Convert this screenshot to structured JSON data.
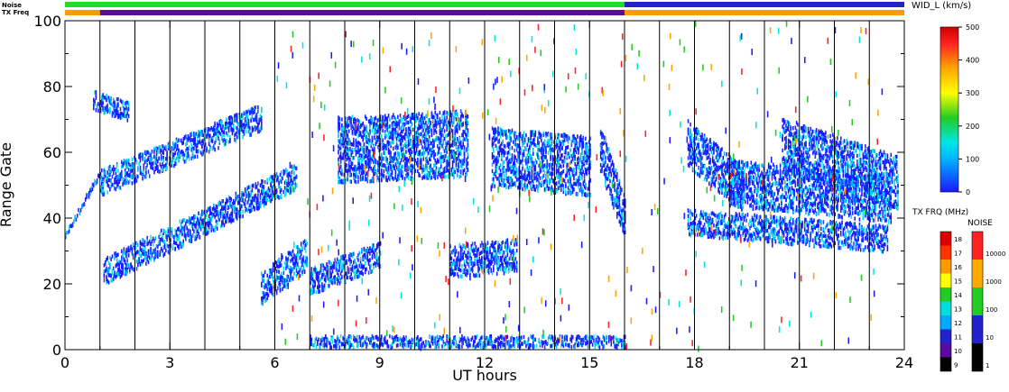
{
  "chart_data": {
    "type": "heatmap",
    "xlabel": "UT hours",
    "ylabel": "Range Gate",
    "xlim": [
      0,
      24
    ],
    "ylim": [
      0,
      100
    ],
    "x_ticks": [
      "0",
      "3",
      "6",
      "9",
      "12",
      "15",
      "18",
      "21",
      "24"
    ],
    "y_ticks": [
      "0",
      "20",
      "40",
      "60",
      "80",
      "100"
    ],
    "hour_gridlines": [
      1,
      2,
      3,
      4,
      5,
      6,
      7,
      8,
      9,
      10,
      11,
      12,
      13,
      14,
      15,
      16,
      17,
      18,
      19,
      20,
      21,
      22,
      23
    ],
    "top_strips": {
      "noise_label": "Noise",
      "txfreq_label": "TX Freq",
      "noise_segments": [
        {
          "x0": 0,
          "x1": 16,
          "color": "#22dd22"
        },
        {
          "x0": 16,
          "x1": 24,
          "color": "#2222cc"
        }
      ],
      "txfreq_segments": [
        {
          "x0": 0,
          "x1": 1,
          "color": "#ff9900"
        },
        {
          "x0": 1,
          "x1": 16,
          "color": "#5a0aa0"
        },
        {
          "x0": 16,
          "x1": 24,
          "color": "#ff9900"
        }
      ]
    },
    "main_colorbar": {
      "title": "WID_L (km/s)",
      "ticks": [
        "0",
        "100",
        "200",
        "300",
        "400",
        "500"
      ],
      "stops": [
        "#1a1aff",
        "#00b4ff",
        "#00e6e6",
        "#22cc22",
        "#ffff00",
        "#ffa500",
        "#ff2222",
        "#cc0000"
      ]
    },
    "freq_colorbar": {
      "title": "TX FRQ (MHz)",
      "ticks": [
        "9",
        "10",
        "11",
        "12",
        "13",
        "14",
        "15",
        "16",
        "17",
        "18"
      ],
      "colors": [
        "#000000",
        "#5a0aa0",
        "#2222cc",
        "#00aaff",
        "#00dddd",
        "#22cc22",
        "#ffff00",
        "#ff9900",
        "#ff3300",
        "#dd0000"
      ]
    },
    "noise_colorbar": {
      "title": "NOISE",
      "ticks": [
        "1",
        "10",
        "100",
        "1000",
        "10000"
      ],
      "colors": [
        "#000000",
        "#2222cc",
        "#22cc22",
        "#ffaa00",
        "#ff2222"
      ]
    },
    "series": [
      {
        "x0": 0.0,
        "x1": 1.0,
        "y": [
          34,
          53
        ],
        "spread": 0
      },
      {
        "x0": 1.0,
        "x1": 5.6,
        "y": [
          50,
          70
        ],
        "spread": 3
      },
      {
        "x0": 1.1,
        "x1": 6.6,
        "y": [
          23,
          52
        ],
        "spread": 3
      },
      {
        "x0": 0.8,
        "x1": 1.8,
        "y": [
          75,
          72
        ],
        "spread": 2
      },
      {
        "x0": 5.6,
        "x1": 6.9,
        "y": [
          18,
          28
        ],
        "spread": 4
      },
      {
        "x0": 7.0,
        "x1": 9.0,
        "y": [
          20,
          28
        ],
        "spread": 3
      },
      {
        "x0": 7.8,
        "x1": 11.5,
        "y": [
          60,
          62
        ],
        "spread": 9
      },
      {
        "x0": 11.0,
        "x1": 12.9,
        "y": [
          26,
          28
        ],
        "spread": 4
      },
      {
        "x0": 12.2,
        "x1": 15.0,
        "y": [
          58,
          55
        ],
        "spread": 8
      },
      {
        "x0": 15.3,
        "x1": 16.0,
        "y": [
          60,
          40
        ],
        "spread": 6
      },
      {
        "x0": 17.8,
        "x1": 19.4,
        "y": [
          62,
          48
        ],
        "spread": 6
      },
      {
        "x0": 19.0,
        "x1": 23.6,
        "y": [
          50,
          45
        ],
        "spread": 6
      },
      {
        "x0": 17.8,
        "x1": 23.5,
        "y": [
          38,
          33
        ],
        "spread": 3
      },
      {
        "x0": 20.5,
        "x1": 23.8,
        "y": [
          62,
          50
        ],
        "spread": 7
      },
      {
        "x0": 7.0,
        "x1": 16.0,
        "y": [
          1,
          1
        ],
        "spread": 1.5
      }
    ]
  }
}
